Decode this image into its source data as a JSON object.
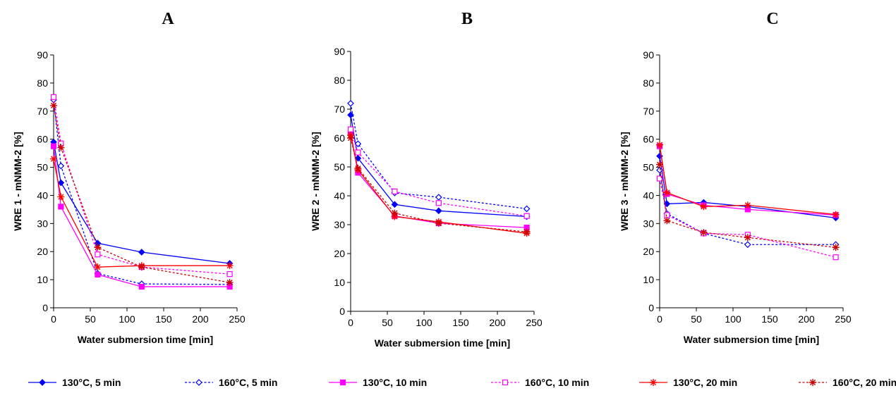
{
  "chart_data": [
    {
      "type": "line",
      "panel_title": "A",
      "xlabel": "Water submersion time [min]",
      "ylabel": "WRE 1 - mNMM-2 [%]",
      "xlim": [
        0,
        250
      ],
      "ylim": [
        0,
        90
      ],
      "xticks": [
        0,
        50,
        100,
        150,
        200,
        250
      ],
      "yticks": [
        0,
        10,
        20,
        30,
        40,
        50,
        60,
        70,
        80,
        90
      ],
      "grid": false,
      "x": [
        0,
        10,
        60,
        120,
        240
      ],
      "series": [
        {
          "name": "130°C, 5 min",
          "color": "#0000ff",
          "dash": "solid",
          "marker": "diamond-filled",
          "values": [
            59,
            44.5,
            23,
            19.8,
            15.8
          ]
        },
        {
          "name": "160°C, 5 min",
          "color": "#0000ff",
          "dash": "dotted",
          "marker": "diamond-open",
          "values": [
            74,
            50.5,
            12.2,
            8.5,
            8.3
          ]
        },
        {
          "name": "130°C, 10 min",
          "color": "#ff00ff",
          "dash": "solid",
          "marker": "square-filled",
          "values": [
            57.5,
            36,
            11.8,
            7.5,
            7.5
          ]
        },
        {
          "name": "160°C, 10 min",
          "color": "#ff00ff",
          "dash": "dotted",
          "marker": "square-open",
          "values": [
            75,
            58.5,
            19,
            14.5,
            12
          ]
        },
        {
          "name": "130°C, 20 min",
          "color": "#ff0000",
          "dash": "solid",
          "marker": "asterisk",
          "values": [
            53,
            39.5,
            14.5,
            15,
            15
          ]
        },
        {
          "name": "160°C, 20 min",
          "color": "#cc0000",
          "dash": "dotted",
          "marker": "asterisk",
          "values": [
            72,
            57,
            21.5,
            14.5,
            9
          ]
        }
      ]
    },
    {
      "type": "line",
      "panel_title": "B",
      "xlabel": "Water submersion time [min]",
      "ylabel": "WRE 2 - mNMM-2 [%]",
      "xlim": [
        0,
        250
      ],
      "ylim": [
        0,
        90
      ],
      "xticks": [
        0,
        50,
        100,
        150,
        200,
        250
      ],
      "yticks": [
        0,
        10,
        20,
        30,
        40,
        50,
        60,
        70,
        80,
        90
      ],
      "grid": false,
      "x": [
        0,
        10,
        60,
        120,
        240
      ],
      "series": [
        {
          "name": "130°C, 5 min",
          "color": "#0000ff",
          "dash": "solid",
          "marker": "diamond-filled",
          "values": [
            68,
            53,
            37,
            34.8,
            32.8
          ]
        },
        {
          "name": "160°C, 5 min",
          "color": "#0000ff",
          "dash": "dotted",
          "marker": "diamond-open",
          "values": [
            72,
            58,
            41,
            39.5,
            35.5
          ]
        },
        {
          "name": "130°C, 10 min",
          "color": "#ff00ff",
          "dash": "solid",
          "marker": "square-filled",
          "values": [
            62,
            48,
            33,
            30.5,
            29
          ]
        },
        {
          "name": "160°C, 10 min",
          "color": "#ff00ff",
          "dash": "dotted",
          "marker": "square-open",
          "values": [
            63,
            55,
            41.5,
            37.5,
            33
          ]
        },
        {
          "name": "130°C, 20 min",
          "color": "#ff0000",
          "dash": "solid",
          "marker": "asterisk",
          "values": [
            61,
            49,
            32.8,
            31,
            27
          ]
        },
        {
          "name": "160°C, 20 min",
          "color": "#cc0000",
          "dash": "dotted",
          "marker": "asterisk",
          "values": [
            60,
            49.5,
            34,
            30.5,
            27.5
          ]
        }
      ]
    },
    {
      "type": "line",
      "panel_title": "C",
      "xlabel": "Water submersion time [min]",
      "ylabel": "WRE 3 - mNMM-2 [%]",
      "xlim": [
        0,
        250
      ],
      "ylim": [
        0,
        90
      ],
      "xticks": [
        0,
        50,
        100,
        150,
        200,
        250
      ],
      "yticks": [
        0,
        10,
        20,
        30,
        40,
        50,
        60,
        70,
        80,
        90
      ],
      "grid": false,
      "x": [
        0,
        10,
        60,
        120,
        240
      ],
      "series": [
        {
          "name": "130°C, 5 min",
          "color": "#0000ff",
          "dash": "solid",
          "marker": "diamond-filled",
          "values": [
            54,
            37,
            37.5,
            36,
            32
          ]
        },
        {
          "name": "160°C, 5 min",
          "color": "#0000ff",
          "dash": "dotted",
          "marker": "diamond-open",
          "values": [
            49,
            33.5,
            26.5,
            22.5,
            22.5
          ]
        },
        {
          "name": "130°C, 10 min",
          "color": "#ff00ff",
          "dash": "solid",
          "marker": "square-filled",
          "values": [
            57.5,
            40.5,
            36.5,
            35,
            33
          ]
        },
        {
          "name": "160°C, 10 min",
          "color": "#ff00ff",
          "dash": "dotted",
          "marker": "square-open",
          "values": [
            46,
            33,
            26.5,
            26,
            18
          ]
        },
        {
          "name": "130°C, 20 min",
          "color": "#ff0000",
          "dash": "solid",
          "marker": "asterisk",
          "values": [
            58,
            41,
            36,
            36.5,
            33.2
          ]
        },
        {
          "name": "160°C, 20 min",
          "color": "#cc0000",
          "dash": "dotted",
          "marker": "asterisk",
          "values": [
            51,
            31,
            26.8,
            25,
            21.5
          ]
        }
      ]
    }
  ],
  "legend": {
    "placement": "bottom",
    "groups": [
      [
        "130°C, 5 min",
        "160°C, 5 min"
      ],
      [
        "130°C, 10 min",
        "160°C, 10 min"
      ],
      [
        "130°C, 20 min",
        "160°C, 20 min"
      ]
    ]
  }
}
